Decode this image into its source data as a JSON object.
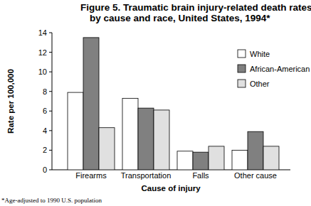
{
  "chart_data": {
    "type": "bar",
    "title": [
      "Figure 5. Traumatic brain injury-related death rates",
      "by cause and race, United States, 1994*"
    ],
    "x_label": "Cause of injury",
    "y_label": "Rate per 100,000",
    "annotations": [
      "*Age-adjusted to 1990 U.S. population"
    ],
    "categories": [
      "Firearms",
      "Transportation",
      "Falls",
      "Other cause"
    ],
    "series": [
      {
        "name": "White",
        "color": "#ffffff",
        "values": [
          7.9,
          7.3,
          1.9,
          2.0
        ]
      },
      {
        "name": "African-American",
        "color": "#808080",
        "values": [
          13.5,
          6.3,
          1.8,
          3.9
        ]
      },
      {
        "name": "Other",
        "color": "#e0e0e0",
        "values": [
          4.3,
          6.1,
          2.4,
          2.4
        ]
      }
    ],
    "ylim": [
      0,
      14
    ],
    "yticks": [
      0,
      2,
      4,
      6,
      8,
      10,
      12,
      14
    ],
    "grid": false,
    "legend": "top-right"
  }
}
